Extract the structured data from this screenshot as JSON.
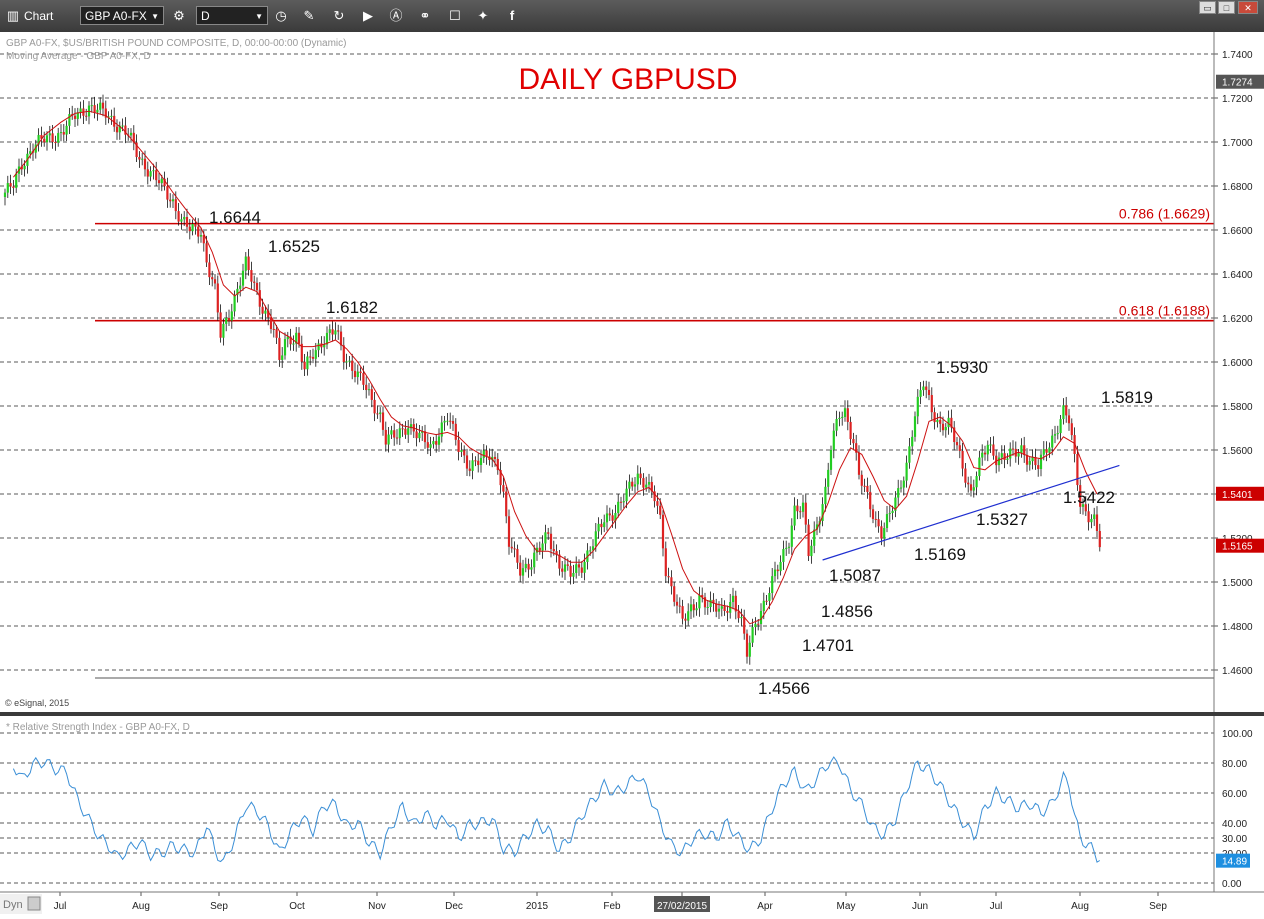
{
  "toolbar": {
    "app_label": "Chart",
    "symbol": "GBP A0-FX",
    "interval": "D"
  },
  "window_buttons": {
    "restore": "▭",
    "maximize": "□",
    "close": "✕"
  },
  "header": {
    "line1": "GBP A0-FX, $US/BRITISH POUND COMPOSITE, D, 00:00-00:00 (Dynamic)",
    "line2": "Moving Average - GBP A0-FX, D"
  },
  "title": "DAILY GBPUSD",
  "copyright": "© eSignal, 2015",
  "rsi_label": "* Relative Strength Index - GBP A0-FX, D",
  "dyn_label": "Dyn",
  "colors": {
    "up": "#22cc22",
    "down": "#dd2222",
    "ma": "#cc1111",
    "rsi": "#3b8fd6",
    "trend": "#1f2fd0",
    "fib": "#cc0000",
    "title": "#e00000"
  },
  "chart_data": {
    "type": "candlestick",
    "price_axis": {
      "ylim": [
        1.45,
        1.756
      ],
      "ticks": [
        "1.7400",
        "1.7200",
        "1.7000",
        "1.6800",
        "1.6600",
        "1.6400",
        "1.6200",
        "1.6000",
        "1.5800",
        "1.5600",
        "1.5400",
        "1.5200",
        "1.5000",
        "1.4800",
        "1.4600"
      ],
      "last_price_badge": "1.7274",
      "ma_badge": "1.5401",
      "price_badge": "1.5165"
    },
    "x_labels": [
      "Jul",
      "Aug",
      "Sep",
      "Oct",
      "Nov",
      "Dec",
      "2015",
      "Feb",
      "27/02/2015",
      "Apr",
      "May",
      "Jun",
      "Jul",
      "Aug",
      "Sep"
    ],
    "fib_levels": [
      {
        "label": "0.786 (1.6629)",
        "value": 1.6629
      },
      {
        "label": "0.618 (1.6188)",
        "value": 1.6188
      }
    ],
    "annotations": [
      {
        "text": "1.6644"
      },
      {
        "text": "1.6525"
      },
      {
        "text": "1.6182"
      },
      {
        "text": "1.5930"
      },
      {
        "text": "1.5819"
      },
      {
        "text": "1.5422"
      },
      {
        "text": "1.5327"
      },
      {
        "text": "1.5169"
      },
      {
        "text": "1.5087"
      },
      {
        "text": "1.4856"
      },
      {
        "text": "1.4701"
      },
      {
        "text": "1.4566"
      }
    ],
    "price_path": [
      [
        0,
        1.677
      ],
      [
        3,
        1.68
      ],
      [
        6,
        1.69
      ],
      [
        10,
        1.698
      ],
      [
        14,
        1.701
      ],
      [
        20,
        1.704
      ],
      [
        25,
        1.712
      ],
      [
        30,
        1.716
      ],
      [
        36,
        1.713
      ],
      [
        40,
        1.708
      ],
      [
        44,
        1.703
      ],
      [
        48,
        1.693
      ],
      [
        52,
        1.686
      ],
      [
        56,
        1.68
      ],
      [
        60,
        1.673
      ],
      [
        63,
        1.664
      ],
      [
        66,
        1.66
      ],
      [
        70,
        1.66
      ],
      [
        72,
        1.646
      ],
      [
        75,
        1.632
      ],
      [
        77,
        1.612
      ],
      [
        80,
        1.622
      ],
      [
        84,
        1.637
      ],
      [
        86,
        1.644
      ],
      [
        88,
        1.638
      ],
      [
        92,
        1.625
      ],
      [
        96,
        1.614
      ],
      [
        98,
        1.6
      ],
      [
        100,
        1.61
      ],
      [
        104,
        1.612
      ],
      [
        107,
        1.596
      ],
      [
        110,
        1.604
      ],
      [
        114,
        1.611
      ],
      [
        118,
        1.614
      ],
      [
        121,
        1.603
      ],
      [
        124,
        1.598
      ],
      [
        128,
        1.59
      ],
      [
        131,
        1.582
      ],
      [
        134,
        1.576
      ],
      [
        136,
        1.565
      ],
      [
        140,
        1.566
      ],
      [
        144,
        1.572
      ],
      [
        148,
        1.566
      ],
      [
        152,
        1.561
      ],
      [
        156,
        1.571
      ],
      [
        158,
        1.575
      ],
      [
        162,
        1.561
      ],
      [
        166,
        1.553
      ],
      [
        170,
        1.555
      ],
      [
        173,
        1.558
      ],
      [
        176,
        1.554
      ],
      [
        178,
        1.539
      ],
      [
        180,
        1.517
      ],
      [
        184,
        1.506
      ],
      [
        188,
        1.509
      ],
      [
        192,
        1.517
      ],
      [
        194,
        1.522
      ],
      [
        198,
        1.508
      ],
      [
        202,
        1.503
      ],
      [
        206,
        1.508
      ],
      [
        210,
        1.518
      ],
      [
        214,
        1.528
      ],
      [
        218,
        1.533
      ],
      [
        222,
        1.54
      ],
      [
        226,
        1.548
      ],
      [
        229,
        1.546
      ],
      [
        232,
        1.538
      ],
      [
        234,
        1.527
      ],
      [
        236,
        1.505
      ],
      [
        240,
        1.491
      ],
      [
        242,
        1.482
      ],
      [
        246,
        1.488
      ],
      [
        248,
        1.494
      ],
      [
        252,
        1.489
      ],
      [
        256,
        1.486
      ],
      [
        260,
        1.493
      ],
      [
        263,
        1.481
      ],
      [
        265,
        1.467
      ],
      [
        268,
        1.482
      ],
      [
        272,
        1.493
      ],
      [
        276,
        1.506
      ],
      [
        280,
        1.52
      ],
      [
        282,
        1.533
      ],
      [
        285,
        1.533
      ],
      [
        287,
        1.513
      ],
      [
        290,
        1.527
      ],
      [
        293,
        1.541
      ],
      [
        295,
        1.561
      ],
      [
        298,
        1.576
      ],
      [
        300,
        1.578
      ],
      [
        303,
        1.564
      ],
      [
        305,
        1.548
      ],
      [
        308,
        1.538
      ],
      [
        311,
        1.528
      ],
      [
        313,
        1.523
      ],
      [
        316,
        1.53
      ],
      [
        319,
        1.54
      ],
      [
        322,
        1.554
      ],
      [
        325,
        1.576
      ],
      [
        328,
        1.59
      ],
      [
        331,
        1.579
      ],
      [
        334,
        1.571
      ],
      [
        337,
        1.571
      ],
      [
        340,
        1.562
      ],
      [
        343,
        1.549
      ],
      [
        345,
        1.54
      ],
      [
        348,
        1.553
      ],
      [
        351,
        1.563
      ],
      [
        354,
        1.557
      ],
      [
        357,
        1.556
      ],
      [
        360,
        1.558
      ],
      [
        363,
        1.561
      ],
      [
        366,
        1.555
      ],
      [
        369,
        1.552
      ],
      [
        372,
        1.561
      ],
      [
        375,
        1.568
      ],
      [
        378,
        1.577
      ],
      [
        380,
        1.573
      ],
      [
        382,
        1.556
      ],
      [
        384,
        1.537
      ],
      [
        387,
        1.53
      ],
      [
        389,
        1.527
      ],
      [
        391,
        1.517
      ]
    ],
    "ma_path": [
      [
        3,
        1.684
      ],
      [
        8,
        1.692
      ],
      [
        14,
        1.703
      ],
      [
        20,
        1.709
      ],
      [
        25,
        1.713
      ],
      [
        30,
        1.714
      ],
      [
        36,
        1.712
      ],
      [
        42,
        1.706
      ],
      [
        48,
        1.697
      ],
      [
        54,
        1.688
      ],
      [
        60,
        1.677
      ],
      [
        66,
        1.667
      ],
      [
        70,
        1.661
      ],
      [
        74,
        1.65
      ],
      [
        78,
        1.635
      ],
      [
        82,
        1.63
      ],
      [
        86,
        1.634
      ],
      [
        90,
        1.632
      ],
      [
        94,
        1.623
      ],
      [
        98,
        1.614
      ],
      [
        102,
        1.611
      ],
      [
        106,
        1.607
      ],
      [
        110,
        1.607
      ],
      [
        114,
        1.608
      ],
      [
        118,
        1.61
      ],
      [
        122,
        1.606
      ],
      [
        126,
        1.6
      ],
      [
        130,
        1.592
      ],
      [
        134,
        1.583
      ],
      [
        138,
        1.575
      ],
      [
        142,
        1.571
      ],
      [
        146,
        1.57
      ],
      [
        150,
        1.568
      ],
      [
        154,
        1.567
      ],
      [
        158,
        1.568
      ],
      [
        162,
        1.566
      ],
      [
        166,
        1.561
      ],
      [
        170,
        1.558
      ],
      [
        174,
        1.556
      ],
      [
        178,
        1.548
      ],
      [
        182,
        1.532
      ],
      [
        186,
        1.521
      ],
      [
        190,
        1.514
      ],
      [
        194,
        1.514
      ],
      [
        198,
        1.512
      ],
      [
        202,
        1.509
      ],
      [
        206,
        1.509
      ],
      [
        210,
        1.514
      ],
      [
        214,
        1.521
      ],
      [
        218,
        1.528
      ],
      [
        222,
        1.535
      ],
      [
        226,
        1.541
      ],
      [
        230,
        1.543
      ],
      [
        234,
        1.537
      ],
      [
        238,
        1.522
      ],
      [
        242,
        1.506
      ],
      [
        246,
        1.496
      ],
      [
        250,
        1.492
      ],
      [
        254,
        1.49
      ],
      [
        258,
        1.489
      ],
      [
        262,
        1.487
      ],
      [
        266,
        1.481
      ],
      [
        270,
        1.483
      ],
      [
        274,
        1.491
      ],
      [
        278,
        1.502
      ],
      [
        282,
        1.515
      ],
      [
        286,
        1.521
      ],
      [
        290,
        1.524
      ],
      [
        294,
        1.536
      ],
      [
        298,
        1.551
      ],
      [
        302,
        1.561
      ],
      [
        306,
        1.558
      ],
      [
        310,
        1.548
      ],
      [
        314,
        1.537
      ],
      [
        318,
        1.533
      ],
      [
        322,
        1.539
      ],
      [
        326,
        1.555
      ],
      [
        330,
        1.573
      ],
      [
        334,
        1.575
      ],
      [
        338,
        1.571
      ],
      [
        342,
        1.564
      ],
      [
        346,
        1.552
      ],
      [
        350,
        1.551
      ],
      [
        354,
        1.555
      ],
      [
        358,
        1.557
      ],
      [
        362,
        1.559
      ],
      [
        366,
        1.557
      ],
      [
        370,
        1.556
      ],
      [
        374,
        1.559
      ],
      [
        378,
        1.566
      ],
      [
        382,
        1.563
      ],
      [
        386,
        1.55
      ],
      [
        390,
        1.54
      ]
    ],
    "trendline": [
      [
        292,
        1.51
      ],
      [
        398,
        1.553
      ]
    ],
    "rsi": {
      "ylim": [
        0,
        100
      ],
      "ticks": [
        "100.00",
        "80.00",
        "60.00",
        "40.00",
        "30.00",
        "20.00",
        "0.00"
      ],
      "badge": "14.89",
      "path": [
        [
          3,
          79
        ],
        [
          6,
          69
        ],
        [
          10,
          79
        ],
        [
          14,
          81
        ],
        [
          18,
          76
        ],
        [
          22,
          74
        ],
        [
          26,
          55
        ],
        [
          30,
          42
        ],
        [
          34,
          30
        ],
        [
          38,
          23
        ],
        [
          40,
          17
        ],
        [
          44,
          22
        ],
        [
          48,
          28
        ],
        [
          52,
          19
        ],
        [
          56,
          20
        ],
        [
          60,
          25
        ],
        [
          64,
          22
        ],
        [
          68,
          20
        ],
        [
          72,
          39
        ],
        [
          75,
          22
        ],
        [
          78,
          13
        ],
        [
          82,
          30
        ],
        [
          86,
          52
        ],
        [
          90,
          48
        ],
        [
          94,
          38
        ],
        [
          98,
          20
        ],
        [
          102,
          34
        ],
        [
          106,
          44
        ],
        [
          110,
          35
        ],
        [
          114,
          52
        ],
        [
          118,
          52
        ],
        [
          122,
          38
        ],
        [
          126,
          40
        ],
        [
          130,
          27
        ],
        [
          134,
          20
        ],
        [
          138,
          38
        ],
        [
          142,
          51
        ],
        [
          146,
          39
        ],
        [
          150,
          46
        ],
        [
          154,
          39
        ],
        [
          158,
          43
        ],
        [
          162,
          30
        ],
        [
          166,
          39
        ],
        [
          170,
          40
        ],
        [
          174,
          43
        ],
        [
          178,
          23
        ],
        [
          182,
          21
        ],
        [
          186,
          31
        ],
        [
          190,
          39
        ],
        [
          194,
          35
        ],
        [
          198,
          22
        ],
        [
          202,
          31
        ],
        [
          206,
          45
        ],
        [
          210,
          55
        ],
        [
          214,
          65
        ],
        [
          218,
          60
        ],
        [
          222,
          65
        ],
        [
          226,
          72
        ],
        [
          230,
          60
        ],
        [
          234,
          40
        ],
        [
          238,
          25
        ],
        [
          242,
          20
        ],
        [
          246,
          31
        ],
        [
          250,
          33
        ],
        [
          254,
          30
        ],
        [
          258,
          40
        ],
        [
          262,
          30
        ],
        [
          266,
          22
        ],
        [
          270,
          30
        ],
        [
          274,
          50
        ],
        [
          278,
          66
        ],
        [
          282,
          74
        ],
        [
          286,
          61
        ],
        [
          290,
          70
        ],
        [
          294,
          80
        ],
        [
          298,
          80
        ],
        [
          302,
          62
        ],
        [
          306,
          52
        ],
        [
          310,
          37
        ],
        [
          314,
          32
        ],
        [
          318,
          43
        ],
        [
          322,
          63
        ],
        [
          326,
          80
        ],
        [
          330,
          75
        ],
        [
          334,
          65
        ],
        [
          338,
          52
        ],
        [
          342,
          41
        ],
        [
          346,
          31
        ],
        [
          350,
          50
        ],
        [
          354,
          60
        ],
        [
          358,
          55
        ],
        [
          362,
          50
        ],
        [
          366,
          53
        ],
        [
          370,
          47
        ],
        [
          374,
          53
        ],
        [
          378,
          70
        ],
        [
          380,
          66
        ],
        [
          382,
          45
        ],
        [
          384,
          30
        ],
        [
          388,
          23
        ],
        [
          391,
          15
        ]
      ]
    }
  }
}
